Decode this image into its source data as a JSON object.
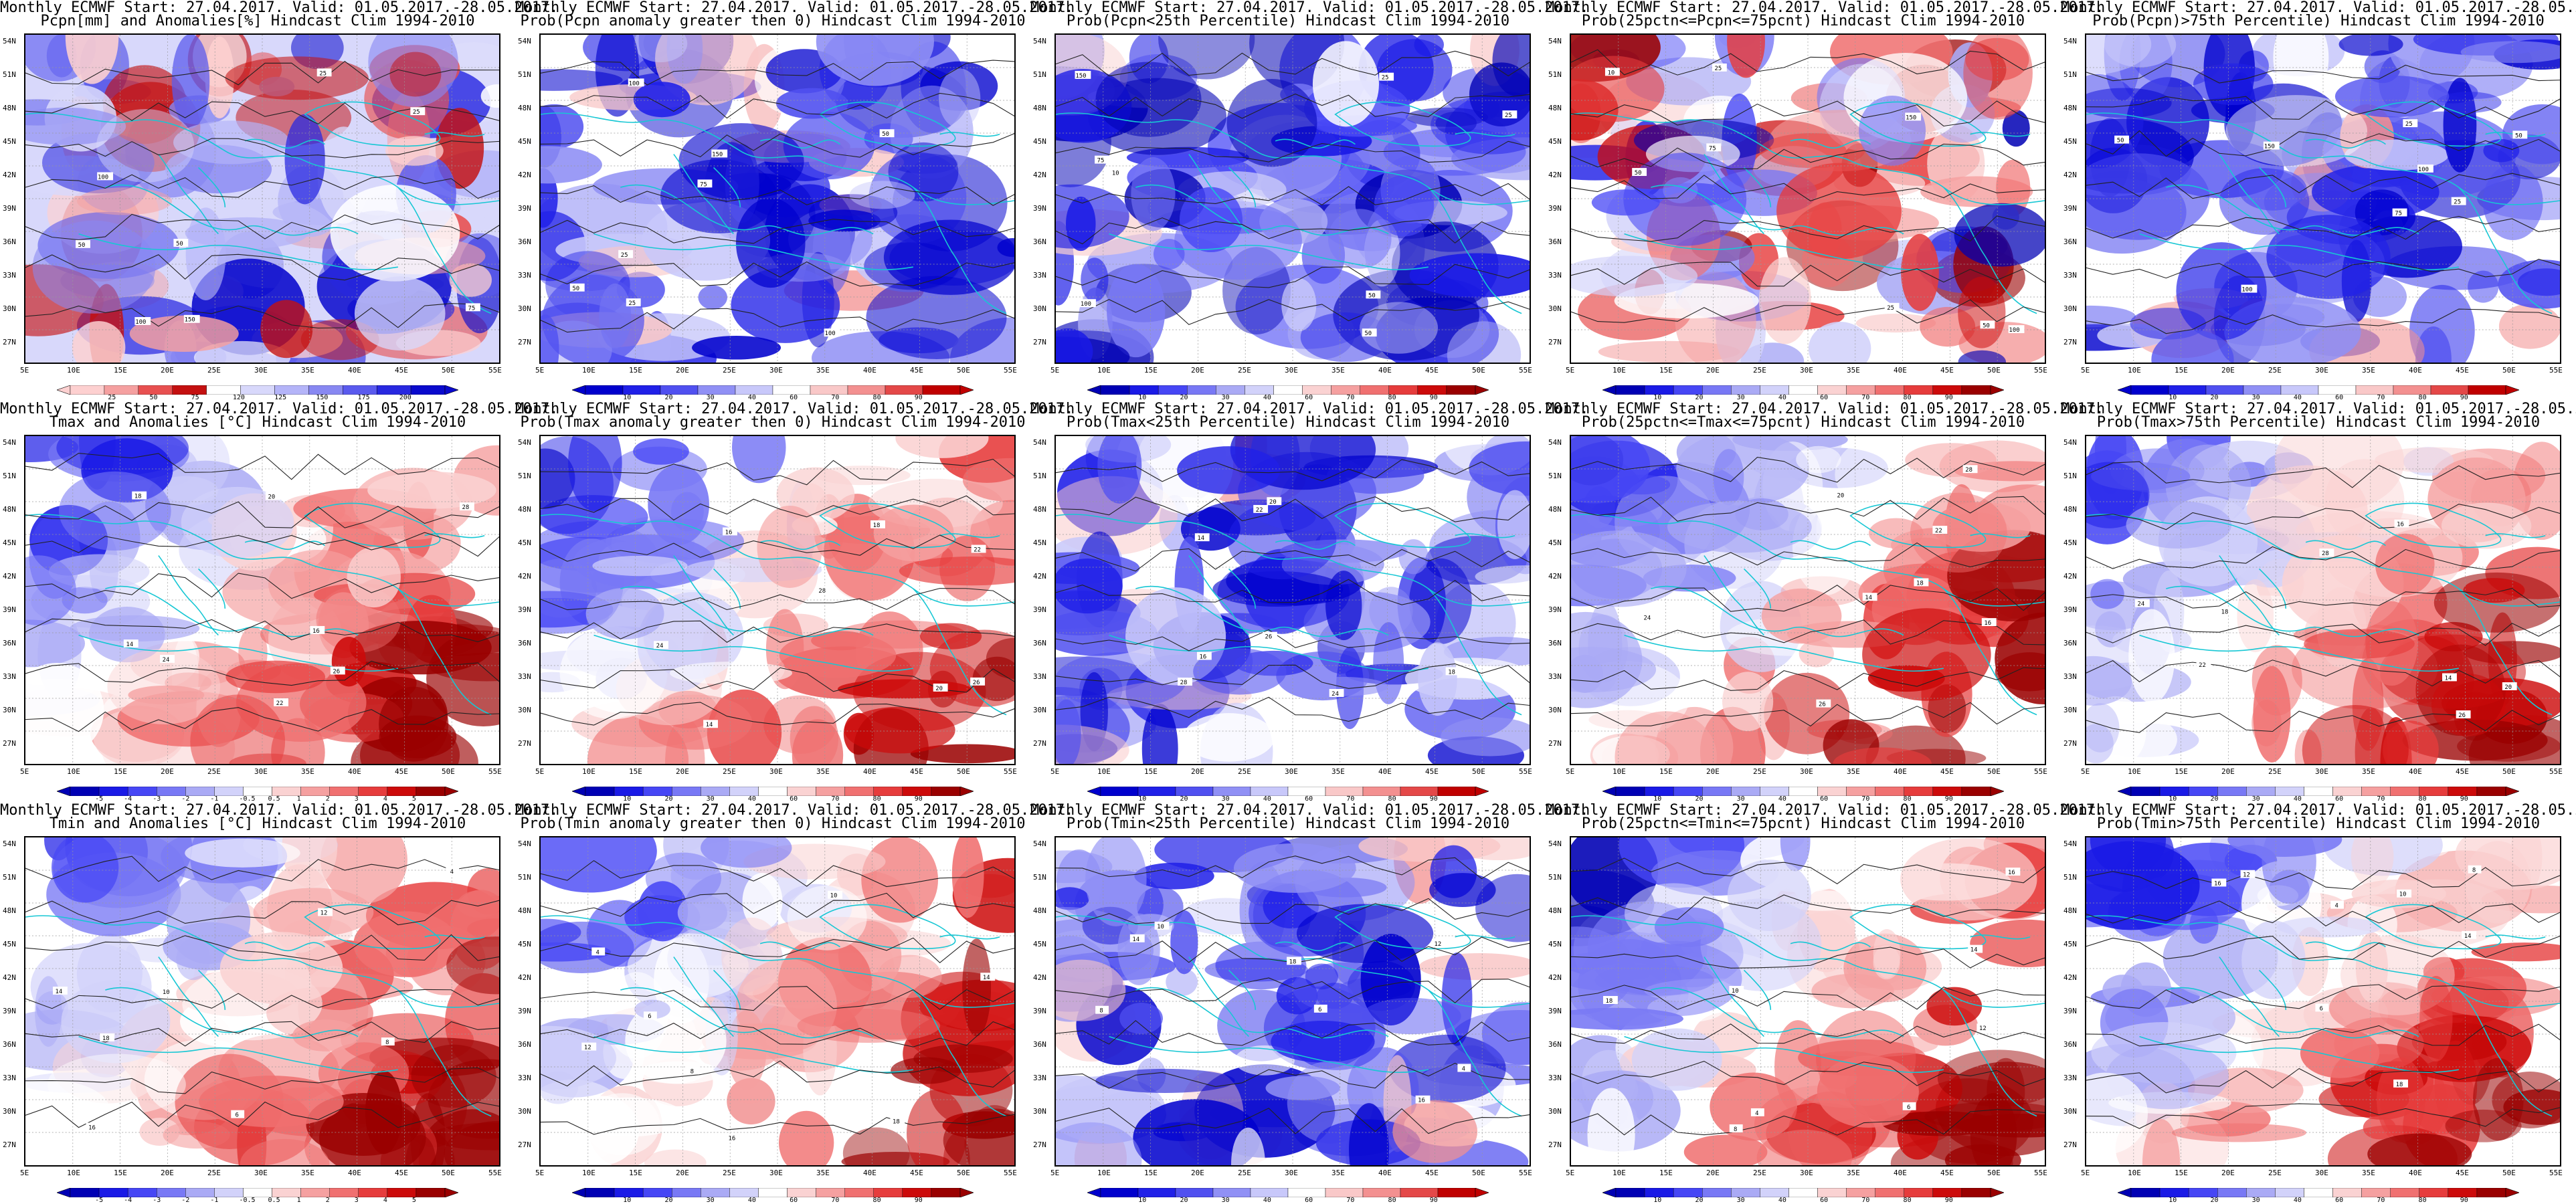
{
  "lat_labels": [
    "54N",
    "51N",
    "48N",
    "45N",
    "42N",
    "39N",
    "36N",
    "33N",
    "30N",
    "27N"
  ],
  "lon_labels": [
    "5E",
    "10E",
    "15E",
    "20E",
    "25E",
    "30E",
    "35E",
    "40E",
    "45E",
    "50E",
    "55E"
  ],
  "palettes": {
    "diverging_blue_red": [
      "#0000b4",
      "#1a1ae6",
      "#4646f5",
      "#7878f5",
      "#aaaaf5",
      "#d2d2fa",
      "#ffffff",
      "#fad2d2",
      "#f5a0a0",
      "#f07070",
      "#e63c3c",
      "#cc0a0a",
      "#9a0000"
    ],
    "precip_anom": [
      "#fdd0d0",
      "#f5a0a0",
      "#e85050",
      "#c41010",
      "#ffffff",
      "#d8d8fb",
      "#b4b4f8",
      "#8888f2",
      "#5a5aee",
      "#2828e0",
      "#0a0acd"
    ],
    "probability_10class": [
      "#0000cd",
      "#2020e8",
      "#5050f0",
      "#9090f5",
      "#c8c8fa",
      "#ffffff",
      "#f9c8c8",
      "#f39090",
      "#e44848",
      "#c00000"
    ]
  },
  "colorbars": {
    "precip_anom": [
      "25",
      "50",
      "75",
      "120",
      "125",
      "150",
      "175",
      "200"
    ],
    "probability": [
      "10",
      "20",
      "30",
      "40",
      "60",
      "70",
      "80",
      "90"
    ],
    "temperature": [
      "-5",
      "-4",
      "-3",
      "-2",
      "-1",
      "-0.5",
      "0.5",
      "1",
      "2",
      "3",
      "4",
      "5"
    ]
  },
  "panels": [
    {
      "line1": "Monthly ECMWF Start: 27.04.2017. Valid: 01.05.2017.-28.05.2017.",
      "line2": "Pcpn[mm] and Anomalies[%] Hindcast Clim 1994-2010",
      "field": "precipitation anomaly",
      "palette": "precip_anom",
      "colorbar": "precip_anom",
      "contour_labels": [
        "25",
        "50",
        "100",
        "75",
        "150",
        "50",
        "25",
        "100"
      ]
    },
    {
      "line1": "Monthly ECMWF Start: 27.04.2017. Valid: 01.05.2017.-28.05.2017.",
      "line2": "Prob(Pcpn anomaly greater then 0) Hindcast Clim 1994-2010",
      "field": "probability",
      "palette": "probability_10class",
      "colorbar": "probability",
      "contour_labels": [
        "100",
        "50",
        "25",
        "75",
        "50",
        "100",
        "25",
        "150"
      ]
    },
    {
      "line1": "Monthly ECMWF Start: 27.04.2017. Valid: 01.05.2017.-28.05.2017.",
      "line2": "Prob(Pcpn<25th Percentile) Hindcast Clim 1994-2010",
      "field": "probability",
      "palette": "diverging_blue_red",
      "colorbar": "probability",
      "contour_labels": [
        "100",
        "50",
        "25",
        "150",
        "75",
        "10",
        "25",
        "50"
      ]
    },
    {
      "line1": "Monthly ECMWF Start: 27.04.2017. Valid: 01.05.2017.-28.05.2017.",
      "line2": "Prob(25pctn<=Pcpn<=75pcnt) Hindcast Clim 1994-2010",
      "field": "probability",
      "palette": "diverging_blue_red",
      "colorbar": "probability",
      "contour_labels": [
        "100",
        "50",
        "25",
        "75",
        "150",
        "10",
        "25",
        "50"
      ]
    },
    {
      "line1": "Monthly ECMWF Start: 27.04.2017. Valid: 01.05.2017.-28.05.2017.",
      "line2": "Prob(Pcpn)>75th Percentile) Hindcast Clim 1994-2010",
      "field": "probability",
      "palette": "probability_10class",
      "colorbar": "probability",
      "contour_labels": [
        "100",
        "50",
        "25",
        "150",
        "75",
        "50",
        "25",
        "100"
      ]
    },
    {
      "line1": "Monthly ECMWF Start: 27.04.2017. Valid: 01.05.2017.-28.05.2017.",
      "line2": "Tmax and Anomalies [°C] Hindcast Clim 1994-2010",
      "field": "temperature anomaly",
      "palette": "diverging_blue_red",
      "colorbar": "temperature",
      "contour_labels": [
        "16",
        "18",
        "20",
        "22",
        "24",
        "26",
        "28",
        "14"
      ]
    },
    {
      "line1": "Monthly ECMWF Start: 27.04.2017. Valid: 01.05.2017.-28.05.2017.",
      "line2": "Prob(Tmax anomaly greater then 0) Hindcast Clim 1994-2010",
      "field": "probability",
      "palette": "diverging_blue_red",
      "colorbar": "probability",
      "contour_labels": [
        "16",
        "18",
        "20",
        "22",
        "24",
        "26",
        "28",
        "14"
      ]
    },
    {
      "line1": "Monthly ECMWF Start: 27.04.2017. Valid: 01.05.2017.-28.05.2017.",
      "line2": "Prob(Tmax<25th Percentile) Hindcast Clim 1994-2010",
      "field": "probability",
      "palette": "probability_10class",
      "colorbar": "probability",
      "contour_labels": [
        "16",
        "18",
        "20",
        "22",
        "24",
        "26",
        "28",
        "14"
      ]
    },
    {
      "line1": "Monthly ECMWF Start: 27.04.2017. Valid: 01.05.2017.-28.05.2017.",
      "line2": "Prob(25pctn<=Tmax<=75pcnt) Hindcast Clim 1994-2010",
      "field": "probability",
      "palette": "diverging_blue_red",
      "colorbar": "probability",
      "contour_labels": [
        "16",
        "18",
        "20",
        "22",
        "24",
        "26",
        "28",
        "14"
      ]
    },
    {
      "line1": "Monthly ECMWF Start: 27.04.2017. Valid: 01.05.2017.-28.05.2017.",
      "line2": "Prob(Tmax>75th Percentile) Hindcast Clim 1994-2010",
      "field": "probability",
      "palette": "diverging_blue_red",
      "colorbar": "probability",
      "contour_labels": [
        "16",
        "18",
        "20",
        "22",
        "24",
        "26",
        "28",
        "14"
      ]
    },
    {
      "line1": "Monthly ECMWF Start: 27.04.2017. Valid: 01.05.2017.-28.05.2017.",
      "line2": "Tmin and Anomalies [°C] Hindcast Clim 1994-2010",
      "field": "temperature anomaly",
      "palette": "diverging_blue_red",
      "colorbar": "temperature",
      "contour_labels": [
        "6",
        "8",
        "10",
        "12",
        "14",
        "16",
        "18",
        "4"
      ]
    },
    {
      "line1": "Monthly ECMWF Start: 27.04.2017. Valid: 01.05.2017.-28.05.2017.",
      "line2": "Prob(Tmin anomaly greater then 0) Hindcast Clim 1994-2010",
      "field": "probability",
      "palette": "diverging_blue_red",
      "colorbar": "probability",
      "contour_labels": [
        "6",
        "8",
        "10",
        "12",
        "14",
        "16",
        "18",
        "4"
      ]
    },
    {
      "line1": "Monthly ECMWF Start: 27.04.2017. Valid: 01.05.2017.-28.05.2017.",
      "line2": "Prob(Tmin<25th Percentile) Hindcast Clim 1994-2010",
      "field": "probability",
      "palette": "probability_10class",
      "colorbar": "probability",
      "contour_labels": [
        "6",
        "8",
        "10",
        "12",
        "14",
        "16",
        "18",
        "4"
      ]
    },
    {
      "line1": "Monthly ECMWF Start: 27.04.2017. Valid: 01.05.2017.-28.05.2017.",
      "line2": "Prob(25pctn<=Tmin<=75pcnt) Hindcast Clim 1994-2010",
      "field": "probability",
      "palette": "diverging_blue_red",
      "colorbar": "probability",
      "contour_labels": [
        "6",
        "8",
        "10",
        "12",
        "14",
        "16",
        "18",
        "4"
      ]
    },
    {
      "line1": "Monthly ECMWF Start: 27.04.2017. Valid: 01.05.2017.-28.05.2017.",
      "line2": "Prob(Tmin>75th Percentile) Hindcast Clim 1994-2010",
      "field": "probability",
      "palette": "diverging_blue_red",
      "colorbar": "probability",
      "contour_labels": [
        "6",
        "8",
        "10",
        "12",
        "14",
        "16",
        "18",
        "4"
      ]
    }
  ]
}
